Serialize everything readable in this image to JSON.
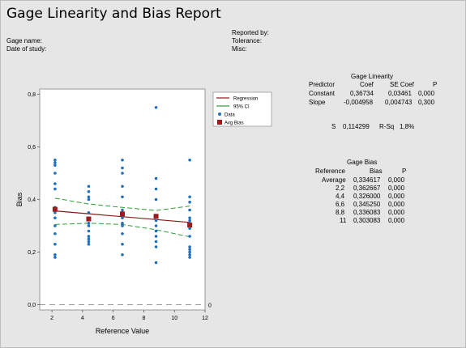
{
  "title": "Gage Linearity and Bias Report",
  "meta_left": {
    "gage_name_label": "Gage name:",
    "date_of_study_label": "Date of study:"
  },
  "meta_right": {
    "reported_by_label": "Reported by:",
    "tolerance_label": "Tolerance:",
    "misc_label": "Misc:"
  },
  "linearity": {
    "title": "Gage Linearity",
    "headers": [
      "Predictor",
      "Coef",
      "SE Coef",
      "P"
    ],
    "rows": [
      [
        "Constant",
        "0,36734",
        "0,03461",
        "0,000"
      ],
      [
        "Slope",
        "-0,004958",
        "0,004743",
        "0,300"
      ]
    ],
    "s_label": "S",
    "s_value": "0,114299",
    "rsq_label": "R-Sq",
    "rsq_value": "1,8%"
  },
  "bias": {
    "title": "Gage Bias",
    "headers": [
      "Reference",
      "Bias",
      "P"
    ],
    "rows": [
      [
        "Average",
        "0,334617",
        "0,000"
      ],
      [
        "2,2",
        "0,362667",
        "0,000"
      ],
      [
        "4,4",
        "0,326000",
        "0,000"
      ],
      [
        "6,6",
        "0,345250",
        "0,000"
      ],
      [
        "8,8",
        "0,336083",
        "0,000"
      ],
      [
        "11",
        "0,303083",
        "0,000"
      ]
    ]
  },
  "chart_data": {
    "type": "scatter",
    "xlabel": "Reference Value",
    "ylabel": "Bias",
    "xlim": [
      1.2,
      12
    ],
    "ylim": [
      -0.02,
      0.82
    ],
    "xticks": [
      2,
      4,
      6,
      8,
      10,
      12
    ],
    "xtick_labels": [
      "2",
      "4",
      "6",
      "8",
      "10",
      "12"
    ],
    "yticks": [
      0.0,
      0.2,
      0.4,
      0.6,
      0.8
    ],
    "ytick_labels": [
      "0,0",
      "0,2",
      "0,4",
      "0,6",
      "0,8"
    ],
    "zero_line_label": "0",
    "legend": {
      "placement": "top-right outside",
      "entries": [
        {
          "name": "Regression",
          "style": "line",
          "color": "#8b1a1a"
        },
        {
          "name": "95% CI",
          "style": "line",
          "color": "#2e9e3a"
        },
        {
          "name": "Data",
          "style": "dot",
          "color": "#1f6fbf"
        },
        {
          "name": "Avg Bias",
          "style": "square",
          "color": "#9b1c1c"
        }
      ]
    },
    "colors": {
      "data": "#1f6fbf",
      "avg_bias": "#9b1c1c",
      "regression": "#8b1a1a",
      "ci": "#2e9e3a",
      "zero_line": "#7a7a7a"
    },
    "data_points": [
      {
        "x": 2.2,
        "y": [
          0.18,
          0.19,
          0.23,
          0.27,
          0.3,
          0.33,
          0.35,
          0.36,
          0.37,
          0.44,
          0.46,
          0.5,
          0.53,
          0.54,
          0.55
        ]
      },
      {
        "x": 4.4,
        "y": [
          0.23,
          0.24,
          0.25,
          0.26,
          0.28,
          0.3,
          0.31,
          0.33,
          0.35,
          0.4,
          0.41,
          0.43,
          0.45
        ]
      },
      {
        "x": 6.6,
        "y": [
          0.19,
          0.23,
          0.27,
          0.3,
          0.31,
          0.33,
          0.34,
          0.35,
          0.36,
          0.41,
          0.45,
          0.5,
          0.52,
          0.55
        ]
      },
      {
        "x": 8.8,
        "y": [
          0.16,
          0.22,
          0.24,
          0.26,
          0.28,
          0.3,
          0.32,
          0.34,
          0.4,
          0.44,
          0.48,
          0.75
        ]
      },
      {
        "x": 11.0,
        "y": [
          0.18,
          0.19,
          0.2,
          0.21,
          0.22,
          0.26,
          0.29,
          0.3,
          0.31,
          0.32,
          0.33,
          0.36,
          0.39,
          0.41,
          0.55
        ]
      }
    ],
    "avg_bias": [
      {
        "x": 2.2,
        "y": 0.362667
      },
      {
        "x": 4.4,
        "y": 0.326
      },
      {
        "x": 6.6,
        "y": 0.34525
      },
      {
        "x": 8.8,
        "y": 0.336083
      },
      {
        "x": 11.0,
        "y": 0.303083
      }
    ],
    "regression": {
      "intercept": 0.36734,
      "slope": -0.004958
    },
    "ci_upper": [
      {
        "x": 2.2,
        "y": 0.405
      },
      {
        "x": 4.4,
        "y": 0.383
      },
      {
        "x": 6.6,
        "y": 0.37
      },
      {
        "x": 8.8,
        "y": 0.358
      },
      {
        "x": 11.0,
        "y": 0.375
      }
    ],
    "ci_lower": [
      {
        "x": 2.2,
        "y": 0.305
      },
      {
        "x": 4.4,
        "y": 0.31
      },
      {
        "x": 6.6,
        "y": 0.305
      },
      {
        "x": 8.8,
        "y": 0.285
      },
      {
        "x": 11.0,
        "y": 0.258
      }
    ]
  }
}
